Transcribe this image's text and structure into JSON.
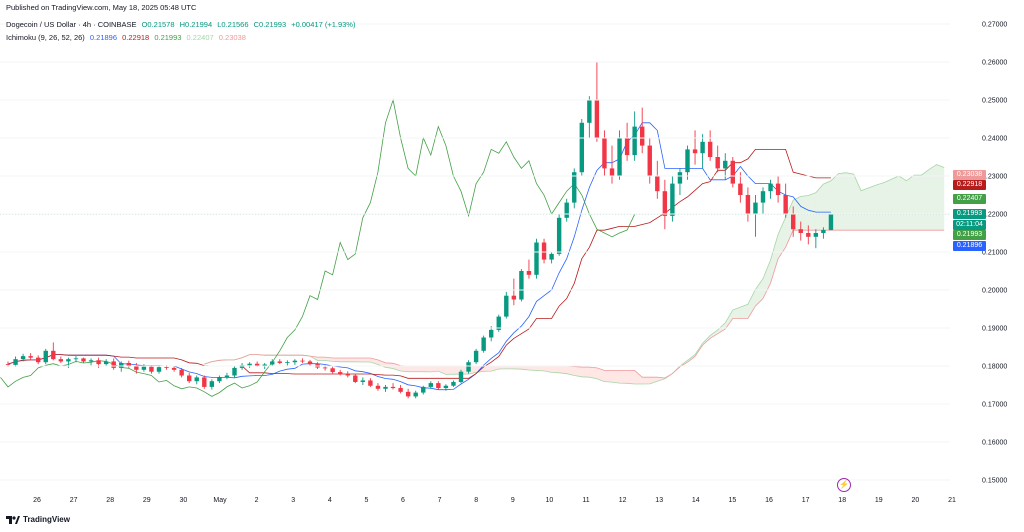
{
  "publish_line": "Published on TradingView.com, May 18, 2025 05:48 UTC",
  "symbol": {
    "name": "Dogecoin / US Dollar · 4h · COINBASE",
    "open": "O0.21578",
    "high": "H0.21994",
    "low": "L0.21566",
    "close": "C0.21993",
    "change": "+0.00417 (+1.93%)"
  },
  "ichimoku": {
    "label": "Ichimoku (9, 26, 52, 26)",
    "conversion": "0.21896",
    "base": "0.22918",
    "lagging": "0.21993",
    "lead1": "0.22407",
    "lead2": "0.23038",
    "colors": {
      "conversion": "#2962ff",
      "base": "#b71c1c",
      "lagging": "#43a047",
      "lead1": "#a5d6a7",
      "lead2": "#ef9a9a"
    }
  },
  "price_labels": [
    {
      "text": "0.23038",
      "color": "#ef9a9a",
      "value": 0.23038
    },
    {
      "text": "0.22918",
      "color": "#b71c1c",
      "value": 0.22918
    },
    {
      "text": "0.22407",
      "color": "#43a047",
      "value": 0.22407
    },
    {
      "text": "0.21993",
      "color": "#089981",
      "value": 0.21993
    },
    {
      "text": "02:11:04",
      "color": "#089981",
      "value": 0.2188
    },
    {
      "text": "0.21993",
      "color": "#43a047",
      "value": 0.21993
    },
    {
      "text": "0.21896",
      "color": "#2962ff",
      "value": 0.21896
    }
  ],
  "footer_brand": "TradingView",
  "chart_data": {
    "type": "candlestick",
    "y_ticks": [
      "0.27000",
      "0.26000",
      "0.25000",
      "0.24000",
      "0.23000",
      "0.22000",
      "0.21000",
      "0.20000",
      "0.19000",
      "0.18000",
      "0.17000",
      "0.16000",
      "0.15000"
    ],
    "x_ticks": [
      "26",
      "27",
      "28",
      "29",
      "30",
      "May",
      "2",
      "3",
      "4",
      "5",
      "6",
      "7",
      "8",
      "9",
      "10",
      "11",
      "12",
      "13",
      "14",
      "15",
      "16",
      "17",
      "18",
      "19",
      "20",
      "21"
    ],
    "ylim": [
      0.15,
      0.27
    ],
    "last_price": 0.21993,
    "candles": [
      [
        0.1805,
        0.1812,
        0.1798,
        0.1803
      ],
      [
        0.1803,
        0.1825,
        0.1798,
        0.1818
      ],
      [
        0.1818,
        0.1832,
        0.1812,
        0.1826
      ],
      [
        0.1826,
        0.1834,
        0.1815,
        0.1822
      ],
      [
        0.1822,
        0.1828,
        0.1805,
        0.181
      ],
      [
        0.181,
        0.1845,
        0.1805,
        0.184
      ],
      [
        0.184,
        0.1862,
        0.1815,
        0.1818
      ],
      [
        0.1818,
        0.1825,
        0.1808,
        0.1812
      ],
      [
        0.1812,
        0.1822,
        0.1795,
        0.1818
      ],
      [
        0.1818,
        0.1826,
        0.181,
        0.182
      ],
      [
        0.182,
        0.1822,
        0.1808,
        0.1812
      ],
      [
        0.1812,
        0.182,
        0.1802,
        0.1815
      ],
      [
        0.1815,
        0.1822,
        0.1795,
        0.1805
      ],
      [
        0.1805,
        0.1818,
        0.18,
        0.1812
      ],
      [
        0.1812,
        0.182,
        0.179,
        0.1795
      ],
      [
        0.1795,
        0.1812,
        0.1785,
        0.1808
      ],
      [
        0.1808,
        0.1814,
        0.1795,
        0.18
      ],
      [
        0.18,
        0.1808,
        0.178,
        0.179
      ],
      [
        0.179,
        0.1805,
        0.1785,
        0.1798
      ],
      [
        0.1798,
        0.1802,
        0.178,
        0.1785
      ],
      [
        0.1785,
        0.1802,
        0.178,
        0.1797
      ],
      [
        0.1797,
        0.1802,
        0.179,
        0.1795
      ],
      [
        0.1795,
        0.18,
        0.1785,
        0.179
      ],
      [
        0.179,
        0.1795,
        0.177,
        0.1775
      ],
      [
        0.1775,
        0.1782,
        0.1755,
        0.176
      ],
      [
        0.176,
        0.1775,
        0.1752,
        0.177
      ],
      [
        0.177,
        0.1775,
        0.174,
        0.1745
      ],
      [
        0.1745,
        0.1765,
        0.1738,
        0.176
      ],
      [
        0.176,
        0.1775,
        0.1755,
        0.177
      ],
      [
        0.177,
        0.1782,
        0.1765,
        0.1775
      ],
      [
        0.1775,
        0.18,
        0.177,
        0.1795
      ],
      [
        0.1795,
        0.1808,
        0.179,
        0.1802
      ],
      [
        0.1802,
        0.181,
        0.1795,
        0.1806
      ],
      [
        0.1806,
        0.1812,
        0.1798,
        0.18
      ],
      [
        0.18,
        0.1808,
        0.1792,
        0.1804
      ],
      [
        0.1804,
        0.1818,
        0.18,
        0.1812
      ],
      [
        0.1812,
        0.1818,
        0.1805,
        0.1808
      ],
      [
        0.1808,
        0.1815,
        0.18,
        0.181
      ],
      [
        0.181,
        0.1818,
        0.1803,
        0.1814
      ],
      [
        0.1814,
        0.182,
        0.1808,
        0.1812
      ],
      [
        0.1812,
        0.1816,
        0.18,
        0.1805
      ],
      [
        0.1805,
        0.181,
        0.1792,
        0.1796
      ],
      [
        0.1796,
        0.1802,
        0.1788,
        0.1794
      ],
      [
        0.1794,
        0.1798,
        0.178,
        0.1784
      ],
      [
        0.1784,
        0.179,
        0.1775,
        0.178
      ],
      [
        0.178,
        0.1786,
        0.177,
        0.1775
      ],
      [
        0.1775,
        0.178,
        0.1755,
        0.1758
      ],
      [
        0.1758,
        0.177,
        0.175,
        0.1762
      ],
      [
        0.1762,
        0.1768,
        0.1745,
        0.1748
      ],
      [
        0.1748,
        0.1755,
        0.1735,
        0.174
      ],
      [
        0.174,
        0.175,
        0.1732,
        0.1745
      ],
      [
        0.1745,
        0.1755,
        0.1738,
        0.1742
      ],
      [
        0.1742,
        0.175,
        0.1728,
        0.1732
      ],
      [
        0.1732,
        0.174,
        0.1715,
        0.172
      ],
      [
        0.172,
        0.1735,
        0.1715,
        0.173
      ],
      [
        0.173,
        0.1748,
        0.1725,
        0.1745
      ],
      [
        0.1745,
        0.176,
        0.174,
        0.1755
      ],
      [
        0.1755,
        0.176,
        0.1738,
        0.1742
      ],
      [
        0.1742,
        0.1752,
        0.1735,
        0.1748
      ],
      [
        0.1748,
        0.1762,
        0.1745,
        0.1758
      ],
      [
        0.1758,
        0.179,
        0.1755,
        0.1785
      ],
      [
        0.1785,
        0.1815,
        0.178,
        0.181
      ],
      [
        0.181,
        0.1845,
        0.1805,
        0.184
      ],
      [
        0.184,
        0.188,
        0.1835,
        0.1875
      ],
      [
        0.1875,
        0.1905,
        0.1865,
        0.1895
      ],
      [
        0.1895,
        0.1935,
        0.189,
        0.193
      ],
      [
        0.193,
        0.1995,
        0.1925,
        0.1985
      ],
      [
        0.1985,
        0.203,
        0.196,
        0.1975
      ],
      [
        0.1975,
        0.2055,
        0.197,
        0.205
      ],
      [
        0.205,
        0.208,
        0.203,
        0.204
      ],
      [
        0.204,
        0.2135,
        0.203,
        0.2125
      ],
      [
        0.2125,
        0.2135,
        0.207,
        0.208
      ],
      [
        0.208,
        0.21,
        0.207,
        0.2095
      ],
      [
        0.2095,
        0.22,
        0.209,
        0.219
      ],
      [
        0.219,
        0.224,
        0.218,
        0.223
      ],
      [
        0.223,
        0.232,
        0.2215,
        0.231
      ],
      [
        0.231,
        0.245,
        0.23,
        0.244
      ],
      [
        0.244,
        0.251,
        0.24,
        0.25
      ],
      [
        0.25,
        0.26,
        0.239,
        0.24
      ],
      [
        0.24,
        0.242,
        0.23,
        0.232
      ],
      [
        0.232,
        0.238,
        0.228,
        0.23
      ],
      [
        0.23,
        0.242,
        0.229,
        0.24
      ],
      [
        0.24,
        0.244,
        0.234,
        0.2355
      ],
      [
        0.2355,
        0.247,
        0.234,
        0.243
      ],
      [
        0.243,
        0.248,
        0.236,
        0.238
      ],
      [
        0.238,
        0.24,
        0.228,
        0.23
      ],
      [
        0.23,
        0.234,
        0.224,
        0.226
      ],
      [
        0.226,
        0.229,
        0.216,
        0.2195
      ],
      [
        0.2195,
        0.23,
        0.218,
        0.228
      ],
      [
        0.228,
        0.232,
        0.225,
        0.231
      ],
      [
        0.231,
        0.238,
        0.229,
        0.237
      ],
      [
        0.237,
        0.242,
        0.233,
        0.236
      ],
      [
        0.236,
        0.241,
        0.232,
        0.239
      ],
      [
        0.239,
        0.242,
        0.234,
        0.235
      ],
      [
        0.235,
        0.238,
        0.231,
        0.232
      ],
      [
        0.232,
        0.236,
        0.229,
        0.234
      ],
      [
        0.234,
        0.235,
        0.227,
        0.228
      ],
      [
        0.228,
        0.231,
        0.223,
        0.225
      ],
      [
        0.225,
        0.227,
        0.218,
        0.22
      ],
      [
        0.22,
        0.225,
        0.214,
        0.223
      ],
      [
        0.223,
        0.227,
        0.22,
        0.226
      ],
      [
        0.226,
        0.229,
        0.224,
        0.228
      ],
      [
        0.228,
        0.23,
        0.223,
        0.225
      ],
      [
        0.225,
        0.228,
        0.219,
        0.22
      ],
      [
        0.22,
        0.222,
        0.214,
        0.216
      ],
      [
        0.216,
        0.218,
        0.213,
        0.215
      ],
      [
        0.215,
        0.217,
        0.212,
        0.214
      ],
      [
        0.214,
        0.216,
        0.211,
        0.215
      ],
      [
        0.215,
        0.2165,
        0.2135,
        0.2158
      ],
      [
        0.2158,
        0.2199,
        0.2157,
        0.2199
      ]
    ],
    "series": [
      {
        "name": "Conversion Line",
        "color": "#2962ff"
      },
      {
        "name": "Base Line",
        "color": "#b71c1c"
      },
      {
        "name": "Lagging Span",
        "color": "#43a047"
      },
      {
        "name": "Leading Span A",
        "color": "#a5d6a7"
      },
      {
        "name": "Leading Span B",
        "color": "#ef9a9a"
      }
    ]
  }
}
